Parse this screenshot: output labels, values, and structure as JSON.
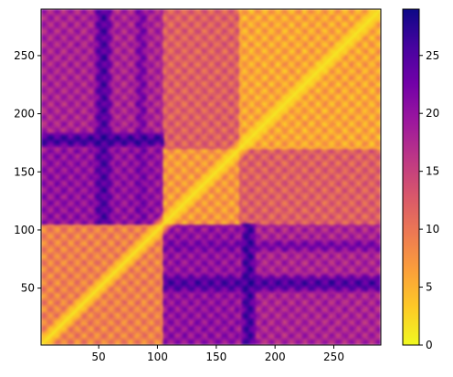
{
  "chart_data": {
    "type": "heatmap",
    "title": "",
    "xlabel": "",
    "ylabel": "",
    "xlim": [
      1,
      290
    ],
    "ylim": [
      1,
      290
    ],
    "x_ticks": [
      50,
      100,
      150,
      200,
      250
    ],
    "y_ticks": [
      50,
      100,
      150,
      200,
      250
    ],
    "x_tick_labels": [
      "50",
      "100",
      "150",
      "200",
      "250"
    ],
    "y_tick_labels": [
      "50",
      "100",
      "150",
      "200",
      "250"
    ],
    "matrix_size": 290,
    "symmetric": true,
    "diagonal_value": 0,
    "colormap": "plasma_r",
    "colormap_stops": [
      "#f0f921",
      "#fdca26",
      "#fb9f3a",
      "#ed7953",
      "#d8576b",
      "#bd3786",
      "#9c179e",
      "#7201a8",
      "#46039f",
      "#0d0887"
    ],
    "color_range": [
      0,
      29
    ],
    "colorbar": {
      "ticks": [
        0,
        5,
        10,
        15,
        20,
        25
      ],
      "tick_labels": [
        "0",
        "5",
        "10",
        "15",
        "20",
        "25"
      ]
    },
    "domains": [
      {
        "start": 1,
        "end": 105
      },
      {
        "start": 105,
        "end": 170
      },
      {
        "start": 170,
        "end": 290
      }
    ],
    "block_mean_values": [
      [
        9,
        20,
        18
      ],
      [
        20,
        7,
        12
      ],
      [
        18,
        12,
        6
      ]
    ],
    "high_value_bands": [
      {
        "rows": [
          105,
          290
        ],
        "cols": [
          45,
          62
        ],
        "value": 25
      },
      {
        "rows": [
          105,
          290
        ],
        "cols": [
          80,
          92
        ],
        "value": 22
      },
      {
        "rows": [
          1,
          105
        ],
        "cols": [
          170,
          185
        ],
        "value": 26
      }
    ],
    "grid": false,
    "legend": "none"
  }
}
